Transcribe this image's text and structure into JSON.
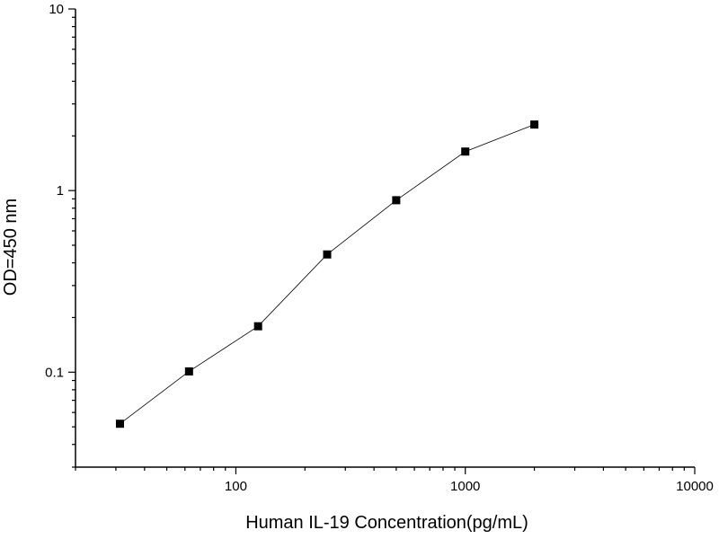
{
  "chart_data": {
    "type": "scatter",
    "title": "",
    "xlabel": "Human IL-19 Concentration(pg/mL)",
    "ylabel": "OD=450 nm",
    "xscale": "log",
    "yscale": "log",
    "xlim": [
      20,
      10000
    ],
    "ylim": [
      0.03,
      10
    ],
    "xticks": [
      100,
      1000,
      10000
    ],
    "xtick_labels": [
      "100",
      "1000",
      "10000"
    ],
    "yticks": [
      0.1,
      1,
      10
    ],
    "ytick_labels": [
      "0.1",
      "1",
      "10"
    ],
    "grid": false,
    "legend": "none",
    "marker": "square",
    "connect_points": true,
    "colors": {
      "marker": "#000000",
      "line": "#000000",
      "axis": "#000000"
    },
    "series": [
      {
        "x": [
          31.25,
          62.5,
          125,
          250,
          500,
          1000,
          2000
        ],
        "y": [
          0.052,
          0.101,
          0.179,
          0.445,
          0.885,
          1.64,
          2.31
        ]
      }
    ]
  }
}
